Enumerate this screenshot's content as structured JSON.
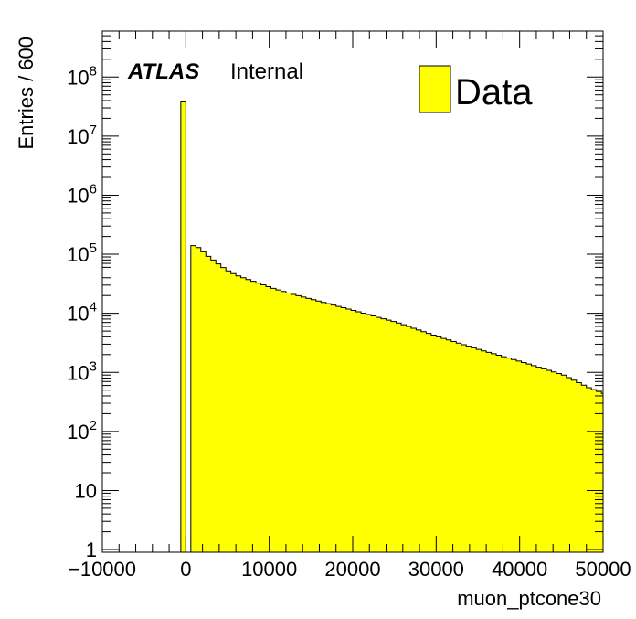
{
  "chart_data": {
    "type": "bar",
    "xlabel": "muon_ptcone30",
    "ylabel": "Entries / 600",
    "xlim": [
      -10000,
      50000
    ],
    "ylim": [
      0.9,
      600000000
    ],
    "yscale": "log",
    "bin_width": 600,
    "x_ticks": [
      -10000,
      0,
      10000,
      20000,
      30000,
      40000,
      50000
    ],
    "x_tick_labels": [
      "−10000",
      "0",
      "10000",
      "20000",
      "30000",
      "40000",
      "50000"
    ],
    "y_ticks": [
      {
        "value": 1,
        "base": "1",
        "exp": ""
      },
      {
        "value": 10,
        "base": "10",
        "exp": ""
      },
      {
        "value": 100,
        "base": "10",
        "exp": "2"
      },
      {
        "value": 1000,
        "base": "10",
        "exp": "3"
      },
      {
        "value": 10000,
        "base": "10",
        "exp": "4"
      },
      {
        "value": 100000,
        "base": "10",
        "exp": "5"
      },
      {
        "value": 1000000,
        "base": "10",
        "exp": "6"
      },
      {
        "value": 10000000,
        "base": "10",
        "exp": "7"
      },
      {
        "value": 100000000,
        "base": "10",
        "exp": "8"
      }
    ],
    "grid": false,
    "legend_position": "top-right",
    "atlas_label": {
      "brand": "ATLAS",
      "status": "Internal"
    },
    "series": [
      {
        "name": "Data",
        "color": "#ffff00",
        "edge_color": "#000000",
        "bins": [
          {
            "x_low": -600,
            "x_high": 0,
            "value": 38000000
          },
          {
            "x_low": 600,
            "x_high": 50000,
            "anchors": [
              [
                600,
                140000
              ],
              [
                1200,
                130000
              ],
              [
                1800,
                110000
              ],
              [
                2400,
                92000
              ],
              [
                3000,
                80000
              ],
              [
                4000,
                62000
              ],
              [
                5000,
                50000
              ],
              [
                6000,
                43000
              ],
              [
                8000,
                34000
              ],
              [
                10000,
                27000
              ],
              [
                12000,
                22000
              ],
              [
                15000,
                17000
              ],
              [
                20000,
                11000
              ],
              [
                25000,
                7000
              ],
              [
                30000,
                4000
              ],
              [
                35000,
                2400
              ],
              [
                40000,
                1500
              ],
              [
                45000,
                900
              ],
              [
                48000,
                550
              ],
              [
                50000,
                430
              ]
            ]
          }
        ]
      }
    ]
  }
}
